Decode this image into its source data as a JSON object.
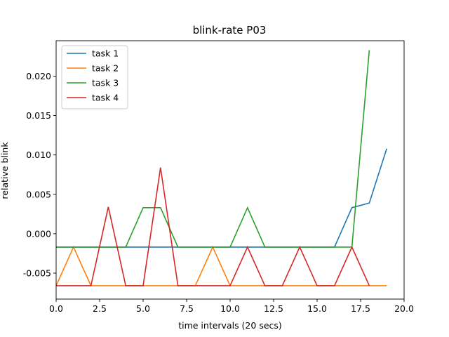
{
  "chart_data": {
    "type": "line",
    "title": "blink-rate P03",
    "xlabel": "time intervals (20 secs)",
    "ylabel": "relative blink",
    "xlim": [
      0.0,
      20.0
    ],
    "ylim": [
      -0.0083,
      0.0245
    ],
    "xticks": [
      "0.0",
      "2.5",
      "5.0",
      "7.5",
      "10.0",
      "12.5",
      "15.0",
      "17.5",
      "20.0"
    ],
    "yticks": [
      "-0.005",
      "0.000",
      "0.005",
      "0.010",
      "0.015",
      "0.020"
    ],
    "grid": false,
    "legend_position": "top-left",
    "series": [
      {
        "name": "task 1",
        "color": "#1f77b4",
        "x": [
          0,
          1,
          2,
          3,
          4,
          5,
          6,
          7,
          8,
          9,
          10,
          11,
          12,
          13,
          14,
          15,
          16,
          17,
          18,
          19
        ],
        "y": [
          -0.0017,
          -0.0017,
          -0.0017,
          -0.0017,
          -0.0017,
          -0.0017,
          -0.0017,
          -0.0017,
          -0.0017,
          -0.0017,
          -0.0017,
          -0.0017,
          -0.0017,
          -0.0017,
          -0.0017,
          -0.0017,
          -0.0017,
          0.0033,
          0.0039,
          0.0108
        ]
      },
      {
        "name": "task 2",
        "color": "#ff7f0e",
        "x": [
          0,
          1,
          2,
          3,
          4,
          5,
          6,
          7,
          8,
          9,
          10,
          11,
          12,
          13,
          14,
          15,
          16,
          17,
          18,
          19
        ],
        "y": [
          -0.0066,
          -0.0017,
          -0.0066,
          -0.0066,
          -0.0066,
          -0.0066,
          -0.0066,
          -0.0066,
          -0.0066,
          -0.0017,
          -0.0066,
          -0.0066,
          -0.0066,
          -0.0066,
          -0.0066,
          -0.0066,
          -0.0066,
          -0.0066,
          -0.0066,
          -0.0066
        ]
      },
      {
        "name": "task 3",
        "color": "#2ca02c",
        "x": [
          0,
          1,
          2,
          3,
          4,
          5,
          6,
          7,
          8,
          9,
          10,
          11,
          12,
          13,
          14,
          15,
          16,
          17,
          18
        ],
        "y": [
          -0.0017,
          -0.0017,
          -0.0017,
          -0.0017,
          -0.0017,
          0.0033,
          0.0033,
          -0.0017,
          -0.0017,
          -0.0017,
          -0.0017,
          0.0033,
          -0.0017,
          -0.0017,
          -0.0017,
          -0.0017,
          -0.0017,
          -0.0017,
          0.0233
        ]
      },
      {
        "name": "task 4",
        "color": "#d62728",
        "x": [
          0,
          1,
          2,
          3,
          4,
          5,
          6,
          7,
          8,
          9,
          10,
          11,
          12,
          13,
          14,
          15,
          16,
          17,
          18
        ],
        "y": [
          -0.0066,
          -0.0066,
          -0.0066,
          0.0034,
          -0.0066,
          -0.0066,
          0.0084,
          -0.0066,
          -0.0066,
          -0.0066,
          -0.0066,
          -0.0017,
          -0.0066,
          -0.0066,
          -0.0017,
          -0.0066,
          -0.0066,
          -0.0017,
          -0.0066
        ]
      }
    ]
  }
}
